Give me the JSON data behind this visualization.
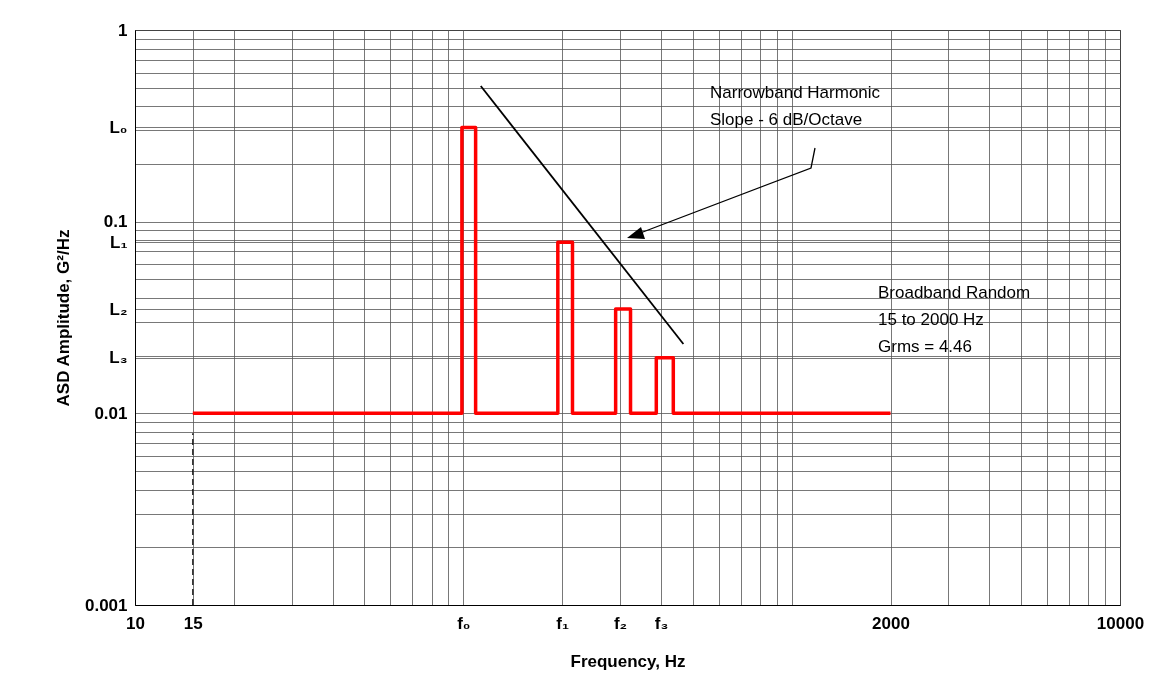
{
  "chart_data": {
    "type": "line",
    "xlabel": "Frequency, Hz",
    "ylabel": "ASD Amplitude, G²/Hz",
    "log": "xy",
    "grid": true,
    "legend": false,
    "marker": "none",
    "line_style": "solid",
    "xlim": [
      10,
      10000
    ],
    "ylim": [
      0.001,
      1
    ],
    "xticks": [
      10,
      15,
      {
        "value": 100,
        "label": "f₀"
      },
      {
        "value": 200,
        "label": "f₁"
      },
      {
        "value": 300,
        "label": "f₂"
      },
      {
        "value": 400,
        "label": "f₃"
      },
      2000,
      10000
    ],
    "yticks": [
      0.001,
      0.01,
      {
        "value": 0.0195,
        "label": "L₃"
      },
      {
        "value": 0.035,
        "label": "L₂"
      },
      {
        "value": 0.078,
        "label": "L₁"
      },
      0.1,
      {
        "value": 0.31,
        "label": "L₀"
      },
      1
    ],
    "series": [
      {
        "color": "#ff0000",
        "x": [
          15,
          99,
          99,
          109,
          109,
          194,
          194,
          215,
          215,
          291,
          291,
          323,
          323,
          387,
          387,
          436,
          436,
          2000
        ],
        "values": [
          0.01,
          0.01,
          0.31,
          0.31,
          0.01,
          0.01,
          0.078,
          0.078,
          0.01,
          0.01,
          0.035,
          0.035,
          0.01,
          0.01,
          0.0195,
          0.0195,
          0.01,
          0.01
        ]
      },
      {
        "color": "#000000",
        "x": [
          113,
          468
        ],
        "values": [
          0.51,
          0.023
        ]
      }
    ],
    "ref_lines": [
      {
        "axis": "x",
        "value": 15,
        "color": "#000000",
        "line_style": "dashed"
      }
    ],
    "annotations": [
      "Narrowband Harmonic\nSlope - 6 dB/Octave",
      "Broadband Random\n15 to 2000 Hz\nGrms = 4.46"
    ]
  }
}
